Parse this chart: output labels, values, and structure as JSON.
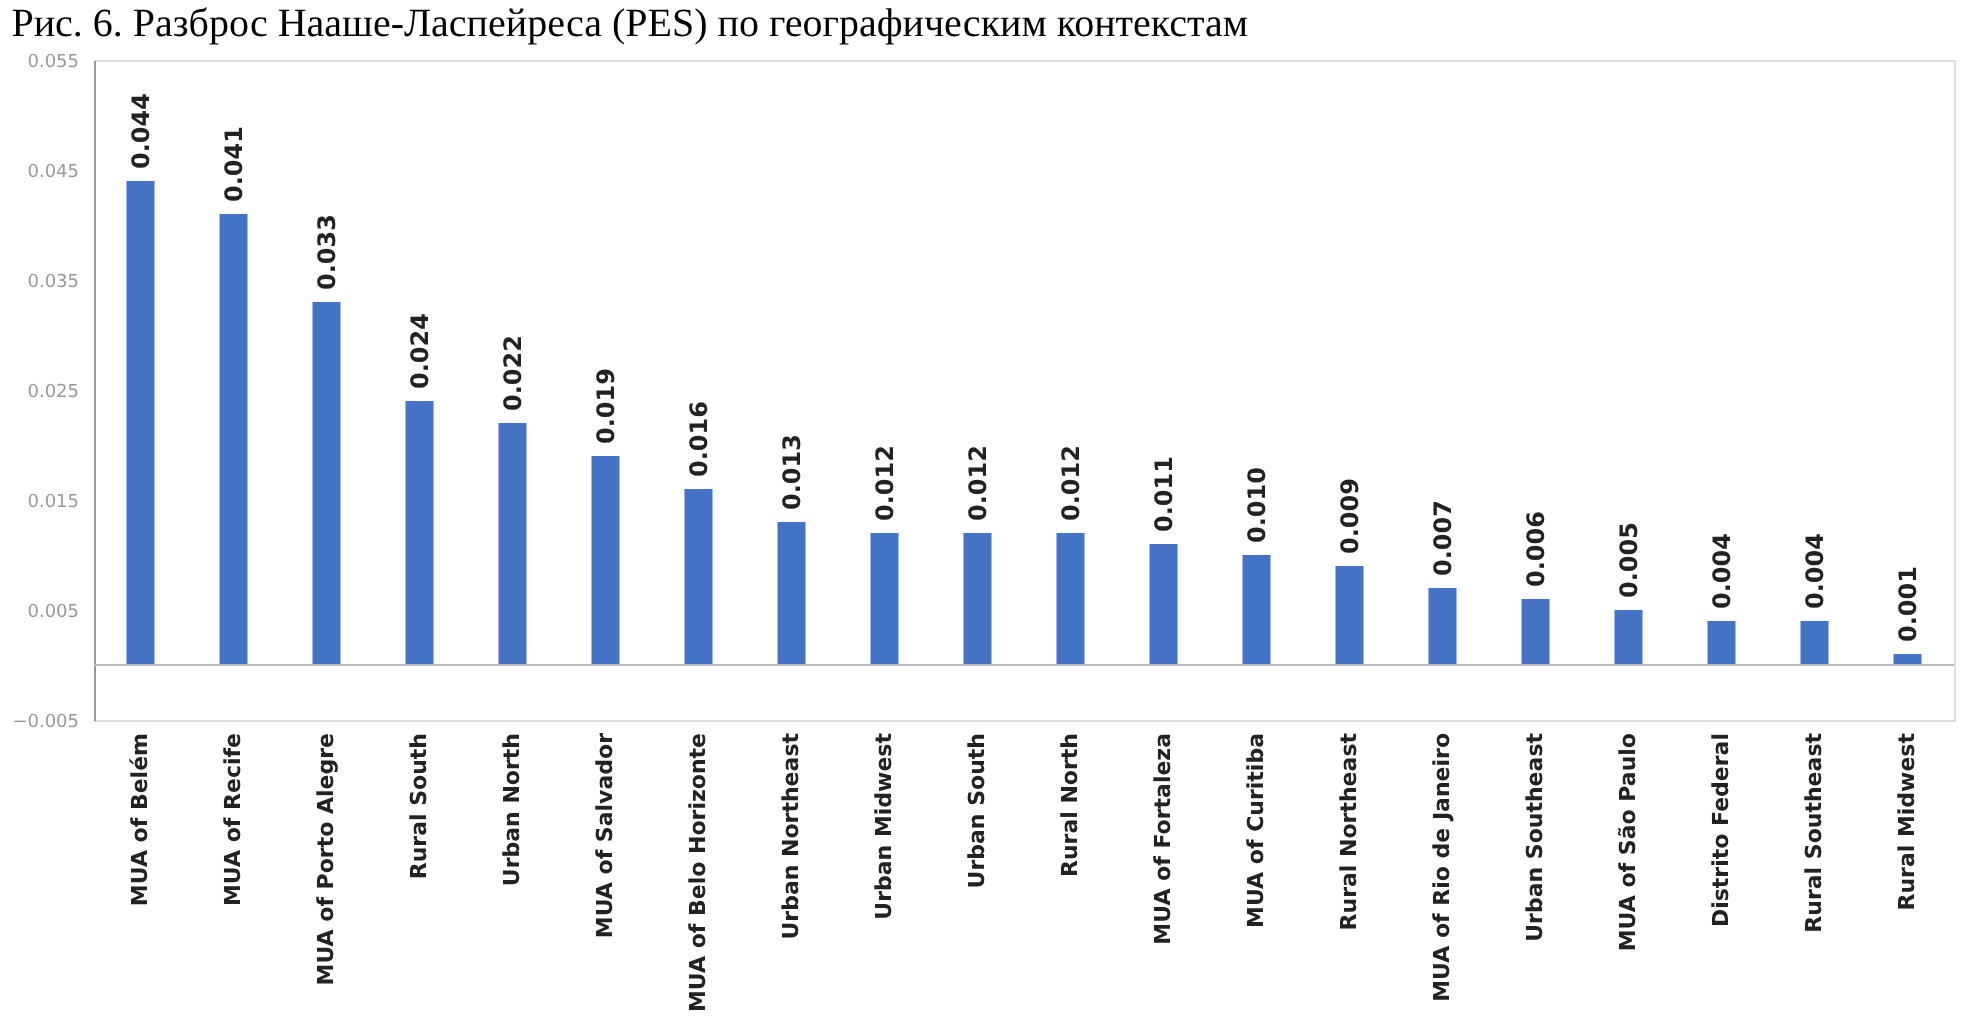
{
  "chart_data": {
    "type": "bar",
    "title": "Рис. 6. Разброс Нааше-Ласпейреса (PES) по географическим контекстам",
    "categories": [
      "MUA of Belém",
      "MUA of Recife",
      "MUA of Porto Alegre",
      "Rural South",
      "Urban North",
      "MUA of Salvador",
      "MUA of Belo Horizonte",
      "Urban Northeast",
      "Urban Midwest",
      "Urban South",
      "Rural North",
      "MUA of Fortaleza",
      "MUA of Curitiba",
      "Rural Northeast",
      "MUA of Rio de Janeiro",
      "Urban Southeast",
      "MUA of São Paulo",
      "Distrito Federal",
      "Rural Southeast",
      "Rural Midwest"
    ],
    "values": [
      0.044,
      0.041,
      0.033,
      0.024,
      0.022,
      0.019,
      0.016,
      0.013,
      0.012,
      0.012,
      0.012,
      0.011,
      0.01,
      0.009,
      0.007,
      0.006,
      0.005,
      0.004,
      0.004,
      0.001
    ],
    "value_labels": [
      "0.044",
      "0.041",
      "0.033",
      "0.024",
      "0.022",
      "0.019",
      "0.016",
      "0.013",
      "0.012",
      "0.012",
      "0.012",
      "0.011",
      "0.010",
      "0.009",
      "0.007",
      "0.006",
      "0.005",
      "0.004",
      "0.004",
      "0.001"
    ],
    "color": "#4472c4",
    "ylim": [
      -0.005,
      0.055
    ],
    "yticks": [
      -0.005,
      0.005,
      0.015,
      0.025,
      0.035,
      0.045,
      0.055
    ],
    "grid": false
  }
}
